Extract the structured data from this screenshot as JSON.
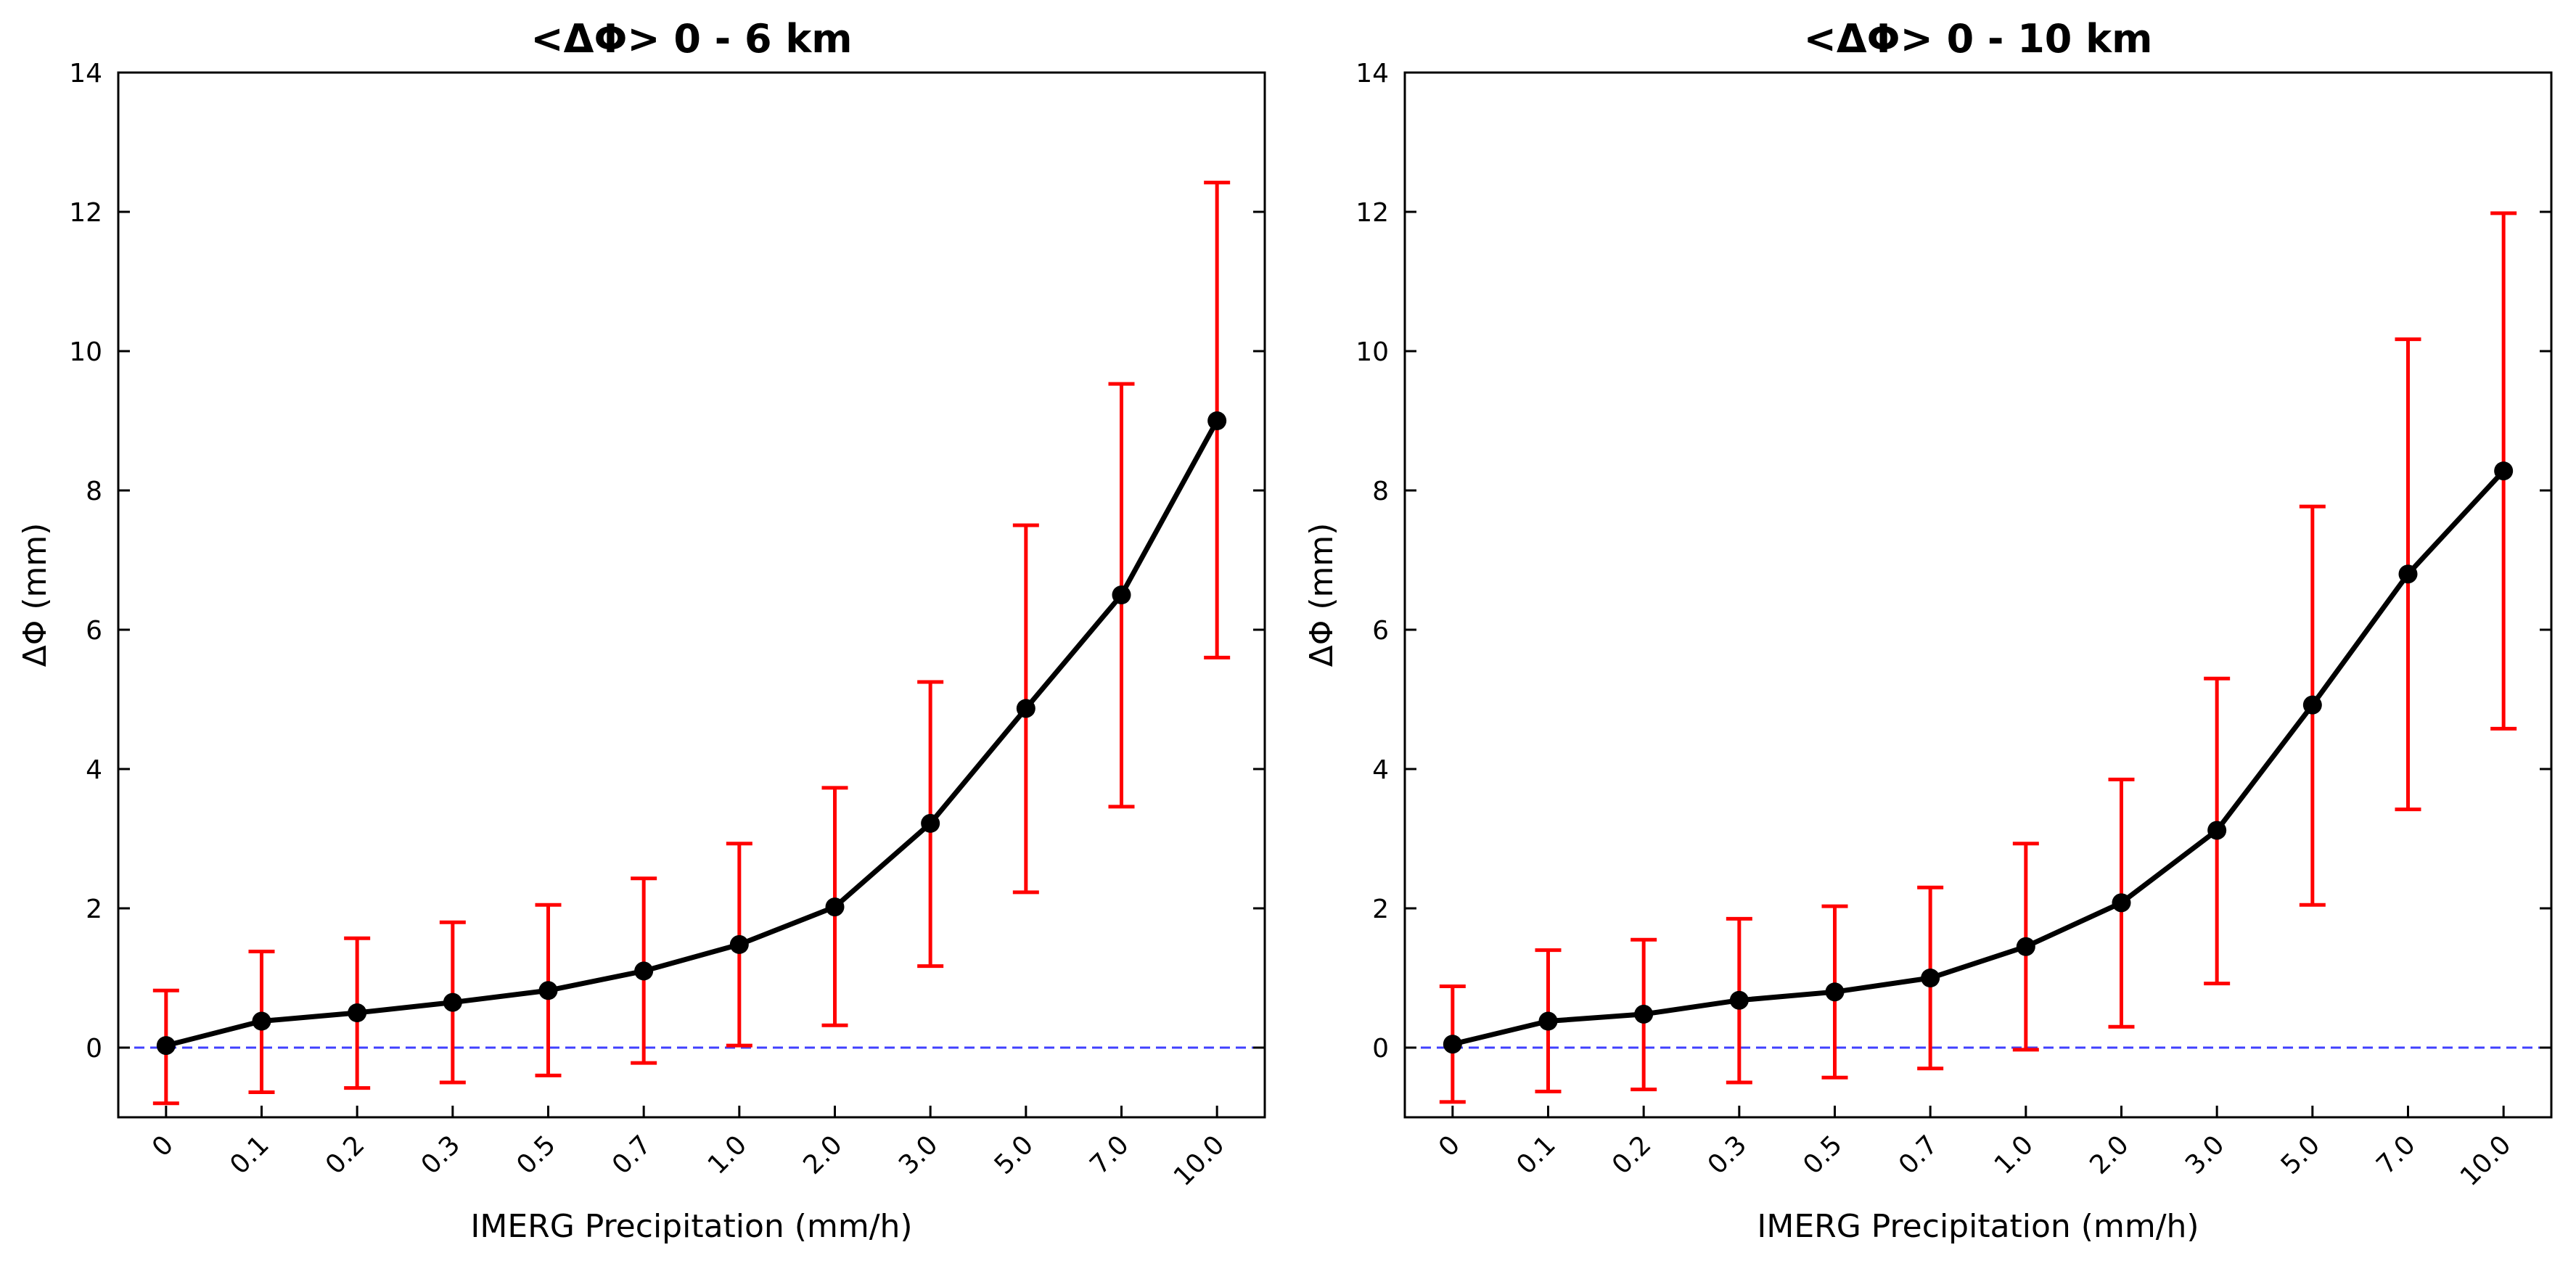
{
  "chart_data": [
    {
      "type": "line",
      "title": "<ΔΦ> 0 - 6 km",
      "xlabel": "IMERG Precipitation (mm/h)",
      "ylabel": "ΔΦ (mm)",
      "categories": [
        "0",
        "0.1",
        "0.2",
        "0.3",
        "0.5",
        "0.7",
        "1.0",
        "2.0",
        "3.0",
        "5.0",
        "7.0",
        "10.0"
      ],
      "ylim": [
        -1,
        14
      ],
      "yticks": [
        0,
        2,
        4,
        6,
        8,
        10,
        12,
        14
      ],
      "reference_line": 0,
      "series": [
        {
          "name": "mean",
          "values": [
            0.03,
            0.38,
            0.5,
            0.65,
            0.82,
            1.1,
            1.48,
            2.02,
            3.22,
            4.87,
            6.5,
            9.0
          ],
          "err_upper": [
            0.82,
            1.38,
            1.57,
            1.8,
            2.05,
            2.43,
            2.93,
            3.73,
            5.25,
            7.5,
            9.53,
            12.42
          ],
          "err_lower": [
            -0.8,
            -0.64,
            -0.58,
            -0.5,
            -0.4,
            -0.22,
            0.03,
            0.32,
            1.17,
            2.23,
            3.46,
            5.6
          ]
        }
      ]
    },
    {
      "type": "line",
      "title": "<ΔΦ> 0 - 10 km",
      "xlabel": "IMERG Precipitation (mm/h)",
      "ylabel": "ΔΦ (mm)",
      "categories": [
        "0",
        "0.1",
        "0.2",
        "0.3",
        "0.5",
        "0.7",
        "1.0",
        "2.0",
        "3.0",
        "5.0",
        "7.0",
        "10.0"
      ],
      "ylim": [
        -1,
        14
      ],
      "yticks": [
        0,
        2,
        4,
        6,
        8,
        10,
        12,
        14
      ],
      "reference_line": 0,
      "series": [
        {
          "name": "mean",
          "values": [
            0.05,
            0.38,
            0.48,
            0.68,
            0.8,
            1.0,
            1.45,
            2.08,
            3.12,
            4.92,
            6.8,
            8.28
          ],
          "err_upper": [
            0.88,
            1.4,
            1.55,
            1.85,
            2.03,
            2.3,
            2.93,
            3.85,
            5.3,
            7.77,
            10.17,
            11.98
          ],
          "err_lower": [
            -0.78,
            -0.63,
            -0.6,
            -0.5,
            -0.43,
            -0.3,
            -0.03,
            0.3,
            0.92,
            2.05,
            3.42,
            4.58
          ]
        }
      ]
    }
  ],
  "colors": {
    "line": "#000000",
    "error": "#ff0000",
    "reference": "#4040ff"
  }
}
